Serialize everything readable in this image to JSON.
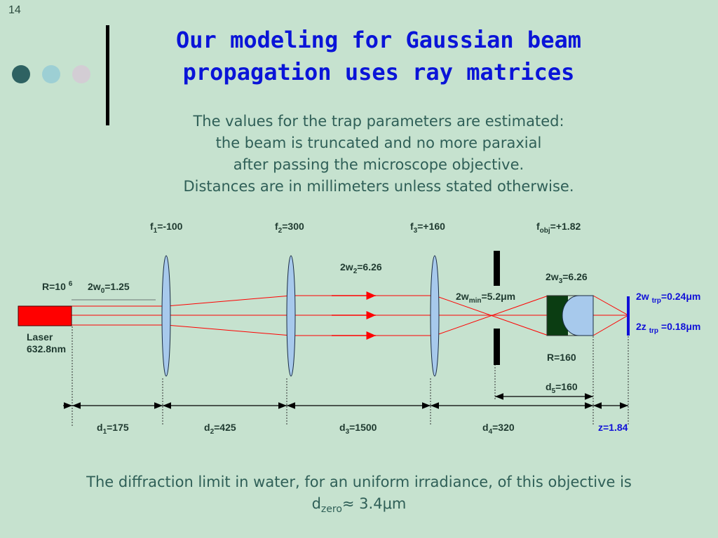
{
  "slide_number": "14",
  "title_lines": [
    "Our modeling for Gaussian beam",
    "propagation uses ray matrices"
  ],
  "subtitle_lines": [
    "The values for the trap parameters are estimated:",
    "the beam is truncated  and no more paraxial",
    "after passing the microscope objective.",
    "Distances are in millimeters unless stated otherwise."
  ],
  "bottom_note": {
    "line1": "The diffraction limit in water, for an uniform irradiance, of this objective is",
    "prefix": "d",
    "sub": "zero",
    "suffix": "≈ 3.4μm"
  },
  "decor": {
    "dot_colors": [
      "#2e6262",
      "#9dcfd4",
      "#d3cdd4"
    ]
  },
  "colors": {
    "beam": "#ff0000",
    "laser": "#ff0000",
    "lens_fill": "#a7c9ec",
    "objective_dark": "#0b3d12",
    "accent_blue": "#1010d8"
  },
  "diagram": {
    "laser": {
      "line1": "Laser",
      "line2": "632.8nm"
    },
    "radius": {
      "base": "R=10",
      "sup": "6"
    },
    "w0": {
      "pre": "2w",
      "sub": "0",
      "post": "=1.25"
    },
    "lenses": [
      {
        "pre": "f",
        "sub": "1",
        "post": "=-100"
      },
      {
        "pre": "f",
        "sub": "2",
        "post": "=300"
      },
      {
        "pre": "f",
        "sub": "3",
        "post": "=+160"
      },
      {
        "pre": "f",
        "sub": "obj",
        "post": "=+1.82"
      }
    ],
    "w2": {
      "pre": "2w",
      "sub": "2",
      "post": "=6.26"
    },
    "wmin": {
      "pre": "2w",
      "sub": "min",
      "post": "=5.2μm"
    },
    "w3": {
      "pre": "2w",
      "sub": "3",
      "post": "=6.26"
    },
    "R160": "R=160",
    "d5": {
      "pre": "d",
      "sub": "5",
      "post": "=160"
    },
    "distances": [
      {
        "pre": "d",
        "sub": "1",
        "post": "=175"
      },
      {
        "pre": "d",
        "sub": "2",
        "post": "=425"
      },
      {
        "pre": "d",
        "sub": "3",
        "post": "=1500"
      },
      {
        "pre": "d",
        "sub": "4",
        "post": "=320"
      }
    ],
    "z": "z=1.84",
    "wtrp": {
      "pre": "2w ",
      "sub": "trp",
      "post": "=0.24μm"
    },
    "ztrp": {
      "pre": "2z ",
      "sub": "trp",
      "post": " =0.18μm"
    }
  }
}
